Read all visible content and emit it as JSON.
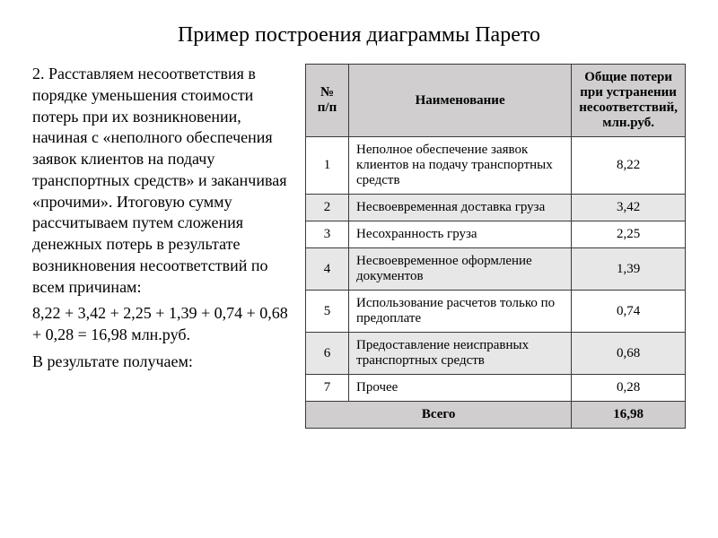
{
  "title": "Пример построения диаграммы Парето",
  "paragraphs": {
    "p1": "2. Расставляем несоответствия в порядке уменьшения стоимости потерь при их возникновении, начиная с «неполного обеспечения заявок клиентов на подачу транспортных средств» и заканчивая «прочими». Итоговую сумму рассчитываем путем сложения денежных потерь в результате возникновения несоответствий по всем причинам:",
    "p2": "8,22 + 3,42 + 2,25 + 1,39 + 0,74 + 0,68 + 0,28 = 16,98 млн.руб.",
    "p3": "В результате получаем:"
  },
  "table": {
    "headers": {
      "num": "№ п/п",
      "name": "Наименование",
      "value": "Общие потери при устранении несоответствий, млн.руб."
    },
    "rows": [
      {
        "num": "1",
        "name": "Неполное обеспечение заявок клиентов на подачу транспортных средств",
        "value": "8,22"
      },
      {
        "num": "2",
        "name": "Несвоевременная доставка груза",
        "value": "3,42"
      },
      {
        "num": "3",
        "name": "Несохранность груза",
        "value": "2,25"
      },
      {
        "num": "4",
        "name": "Несвоевременное оформление документов",
        "value": "1,39"
      },
      {
        "num": "5",
        "name": "Использование расчетов только по предоплате",
        "value": "0,74"
      },
      {
        "num": "6",
        "name": "Предоставление неисправных транспортных средств",
        "value": "0,68"
      },
      {
        "num": "7",
        "name": "Прочее",
        "value": "0,28"
      }
    ],
    "footer": {
      "label": "Всего",
      "value": "16,98"
    }
  },
  "style": {
    "background": "#ffffff",
    "text_color": "#000000",
    "header_bg": "#d0cecf",
    "alt_row_bg": "#e8e7e8",
    "border_color": "#3a3a3a",
    "title_fontsize": 24,
    "body_fontsize": 18,
    "table_fontsize": 15,
    "font_family": "Times New Roman"
  }
}
